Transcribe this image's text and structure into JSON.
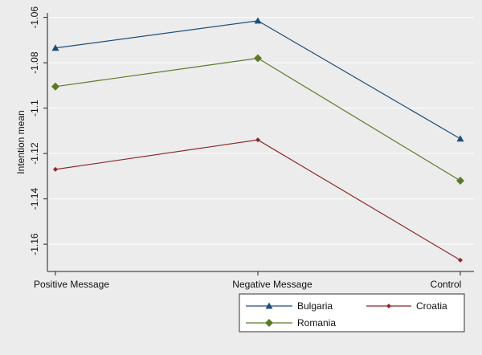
{
  "chart_data": {
    "type": "line",
    "title": "",
    "xlabel": "",
    "ylabel": "Intention mean",
    "categories": [
      "Positive Message",
      "Negative Message",
      "Control"
    ],
    "ylim": [
      -1.172,
      -1.058
    ],
    "yticks": [
      -1.06,
      -1.08,
      -1.1,
      -1.12,
      -1.14,
      -1.16
    ],
    "ytick_labels": [
      "-1.06",
      "-1.08",
      "-1.1",
      "-1.12",
      "-1.14",
      "-1.16"
    ],
    "grid": true,
    "legend_position": "bottom-right",
    "series": [
      {
        "name": "Bulgaria",
        "values": [
          -1.0735,
          -1.0615,
          -1.1135
        ],
        "color": "#1f4e79",
        "marker": "triangle"
      },
      {
        "name": "Croatia",
        "values": [
          -1.127,
          -1.114,
          -1.167
        ],
        "color": "#8b2a2a",
        "marker": "diamond-small"
      },
      {
        "name": "Romania",
        "values": [
          -1.0905,
          -1.078,
          -1.132
        ],
        "color": "#5a7a2a",
        "marker": "diamond"
      }
    ]
  }
}
